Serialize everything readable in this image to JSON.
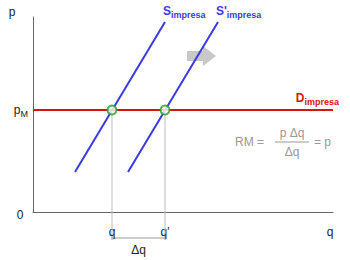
{
  "chart_data": {
    "type": "line",
    "xlabel": "q",
    "ylabel": "p",
    "xlim": [
      0,
      300
    ],
    "ylim": [
      0,
      195
    ],
    "xticks": [
      {
        "value": 79,
        "label": "q"
      },
      {
        "value": 132,
        "label": "q'"
      }
    ],
    "yticks": [
      {
        "value": 102,
        "label": "p",
        "subscript": "M"
      }
    ],
    "grid": false,
    "series": [
      {
        "name": "S",
        "subscript": "impresa",
        "color": "#3a3ae0",
        "x": [
          42,
          132
        ],
        "values": [
          40,
          190
        ]
      },
      {
        "name": "S'",
        "subscript": "impresa",
        "color": "#3a3ae0",
        "x": [
          95,
          185
        ],
        "values": [
          40,
          190
        ]
      },
      {
        "name": "D",
        "subscript": "impresa",
        "color": "#dd1111",
        "x": [
          0,
          300
        ],
        "values": [
          102,
          102
        ]
      },
      {
        "type": "scatter",
        "marker": "circle",
        "color": "#22a022",
        "x": [
          79,
          132
        ],
        "values": [
          102,
          102
        ]
      }
    ],
    "annotations": [
      {
        "text": "0",
        "x": 0,
        "y": 0
      },
      {
        "text": "Δq",
        "from": 79,
        "to": 132
      },
      {
        "text": "RM =",
        "numerator": "p Δq",
        "denominator": "Δq",
        "result": "= p",
        "x": 202,
        "y": 70
      }
    ]
  }
}
